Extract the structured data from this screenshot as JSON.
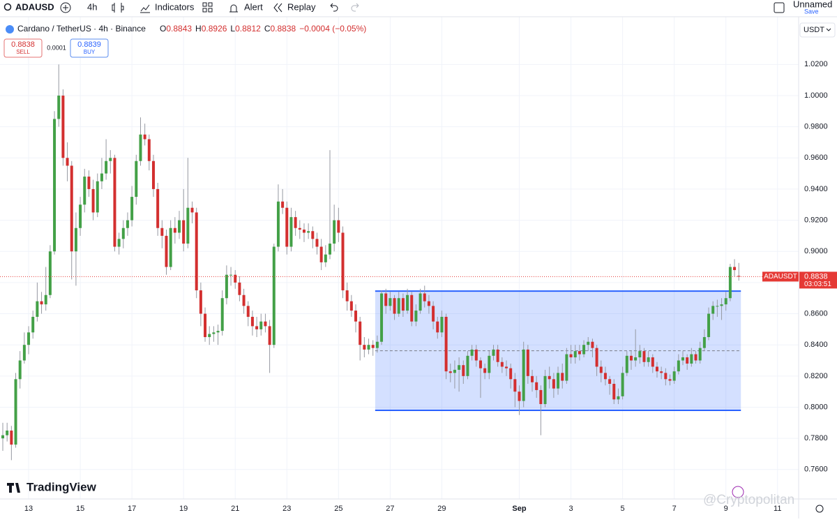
{
  "toolbar": {
    "symbol": "ADAUSD",
    "interval": "4h",
    "indicators": "Indicators",
    "alert": "Alert",
    "replay": "Replay",
    "layout_name": "Unnamed",
    "save": "Save"
  },
  "header": {
    "title": "Cardano / TetherUS · 4h · Binance",
    "legend": [
      {
        "label": "O",
        "value": "0.8843"
      },
      {
        "label": "H",
        "value": "0.8926"
      },
      {
        "label": "L",
        "value": "0.8812"
      },
      {
        "label": "C",
        "value": "0.8838"
      }
    ],
    "change": "−0.0004 (−0.05%)",
    "sell_price": "0.8838",
    "sell": "SELL",
    "spread": "0.0001",
    "buy_price": "0.8839",
    "buy": "BUY"
  },
  "currency": "USDT",
  "logo": "TradingView",
  "watermark": "@Cryptopolitan",
  "chart_data": {
    "type": "candlestick",
    "up_color": "#43a047",
    "down_color": "#d32f2f",
    "wick_color": "#9598a1",
    "grid": true,
    "ylim": [
      0.7411,
      1.0506
    ],
    "yticks": [
      {
        "value": 0.76,
        "label": "0.7600"
      },
      {
        "value": 0.78,
        "label": "0.7800"
      },
      {
        "value": 0.8,
        "label": "0.8000"
      },
      {
        "value": 0.82,
        "label": "0.8200"
      },
      {
        "value": 0.84,
        "label": "0.8400"
      },
      {
        "value": 0.86,
        "label": "0.8600"
      },
      {
        "value": 0.88,
        "label": "0.8800"
      },
      {
        "value": 0.9,
        "label": "0.9000"
      },
      {
        "value": 0.92,
        "label": "0.9200"
      },
      {
        "value": 0.94,
        "label": "0.9400"
      },
      {
        "value": 0.96,
        "label": "0.9600"
      },
      {
        "value": 0.98,
        "label": "0.9800"
      },
      {
        "value": 1.0,
        "label": "1.0000"
      },
      {
        "value": 1.02,
        "label": "1.0200"
      }
    ],
    "xlim": [
      -0.65,
      184.9
    ],
    "xticks": [
      {
        "value": 6,
        "label": "13"
      },
      {
        "value": 18,
        "label": "15"
      },
      {
        "value": 30,
        "label": "17"
      },
      {
        "value": 42,
        "label": "19"
      },
      {
        "value": 54,
        "label": "21"
      },
      {
        "value": 66,
        "label": "23"
      },
      {
        "value": 78,
        "label": "25"
      },
      {
        "value": 90,
        "label": "27"
      },
      {
        "value": 102,
        "label": "29"
      },
      {
        "value": 120,
        "label": "Sep"
      },
      {
        "value": 132,
        "label": "3"
      },
      {
        "value": 144,
        "label": "5"
      },
      {
        "value": 156,
        "label": "7"
      },
      {
        "value": 168,
        "label": "9"
      },
      {
        "value": 180,
        "label": "11"
      }
    ],
    "box": {
      "from": 87,
      "to": 171,
      "high": 0.8745,
      "low": 0.798,
      "color": "#2962ff"
    },
    "last_price": {
      "symbol": "ADAUSDT",
      "value": 0.8838,
      "countdown": "03:03:51",
      "color": "#e53935"
    },
    "ohlc": [
      [
        0.78,
        0.79,
        0.772,
        0.782
      ],
      [
        0.782,
        0.79,
        0.778,
        0.785
      ],
      [
        0.785,
        0.788,
        0.766,
        0.776
      ],
      [
        0.776,
        0.822,
        0.774,
        0.818
      ],
      [
        0.818,
        0.836,
        0.812,
        0.83
      ],
      [
        0.83,
        0.848,
        0.828,
        0.84
      ],
      [
        0.84,
        0.852,
        0.834,
        0.848
      ],
      [
        0.848,
        0.862,
        0.844,
        0.858
      ],
      [
        0.858,
        0.88,
        0.855,
        0.868
      ],
      [
        0.868,
        0.874,
        0.86,
        0.866
      ],
      [
        0.866,
        0.89,
        0.862,
        0.872
      ],
      [
        0.872,
        0.904,
        0.87,
        0.9
      ],
      [
        0.9,
        0.99,
        0.898,
        0.985
      ],
      [
        0.985,
        1.02,
        0.98,
        1.0
      ],
      [
        1.0,
        1.004,
        0.955,
        0.96
      ],
      [
        0.96,
        0.97,
        0.945,
        0.955
      ],
      [
        0.955,
        0.958,
        0.882,
        0.9
      ],
      [
        0.9,
        0.925,
        0.878,
        0.915
      ],
      [
        0.915,
        0.935,
        0.91,
        0.93
      ],
      [
        0.93,
        0.953,
        0.925,
        0.948
      ],
      [
        0.948,
        0.952,
        0.935,
        0.94
      ],
      [
        0.94,
        0.946,
        0.92,
        0.925
      ],
      [
        0.925,
        0.95,
        0.922,
        0.945
      ],
      [
        0.945,
        0.96,
        0.94,
        0.95
      ],
      [
        0.95,
        0.972,
        0.946,
        0.958
      ],
      [
        0.958,
        0.965,
        0.95,
        0.96
      ],
      [
        0.96,
        0.962,
        0.9,
        0.903
      ],
      [
        0.903,
        0.912,
        0.898,
        0.908
      ],
      [
        0.908,
        0.92,
        0.902,
        0.915
      ],
      [
        0.915,
        0.925,
        0.91,
        0.92
      ],
      [
        0.92,
        0.942,
        0.916,
        0.935
      ],
      [
        0.935,
        0.962,
        0.93,
        0.958
      ],
      [
        0.958,
        0.986,
        0.955,
        0.975
      ],
      [
        0.975,
        0.982,
        0.968,
        0.972
      ],
      [
        0.972,
        0.975,
        0.952,
        0.958
      ],
      [
        0.958,
        0.962,
        0.935,
        0.94
      ],
      [
        0.94,
        0.944,
        0.91,
        0.915
      ],
      [
        0.915,
        0.92,
        0.902,
        0.91
      ],
      [
        0.91,
        0.914,
        0.885,
        0.89
      ],
      [
        0.89,
        0.92,
        0.888,
        0.915
      ],
      [
        0.915,
        0.922,
        0.905,
        0.912
      ],
      [
        0.912,
        0.926,
        0.908,
        0.92
      ],
      [
        0.92,
        0.94,
        0.9,
        0.905
      ],
      [
        0.905,
        0.96,
        0.902,
        0.928
      ],
      [
        0.928,
        0.932,
        0.918,
        0.925
      ],
      [
        0.925,
        0.928,
        0.87,
        0.875
      ],
      [
        0.875,
        0.88,
        0.852,
        0.86
      ],
      [
        0.86,
        0.864,
        0.842,
        0.845
      ],
      [
        0.845,
        0.852,
        0.84,
        0.847
      ],
      [
        0.847,
        0.852,
        0.842,
        0.848
      ],
      [
        0.848,
        0.853,
        0.84,
        0.849
      ],
      [
        0.849,
        0.875,
        0.846,
        0.87
      ],
      [
        0.87,
        0.891,
        0.866,
        0.885
      ],
      [
        0.885,
        0.89,
        0.878,
        0.885
      ],
      [
        0.885,
        0.888,
        0.876,
        0.88
      ],
      [
        0.88,
        0.884,
        0.868,
        0.872
      ],
      [
        0.872,
        0.876,
        0.86,
        0.865
      ],
      [
        0.865,
        0.868,
        0.852,
        0.858
      ],
      [
        0.858,
        0.862,
        0.846,
        0.852
      ],
      [
        0.852,
        0.858,
        0.845,
        0.85
      ],
      [
        0.85,
        0.86,
        0.846,
        0.855
      ],
      [
        0.855,
        0.86,
        0.848,
        0.852
      ],
      [
        0.852,
        0.856,
        0.822,
        0.84
      ],
      [
        0.84,
        0.905,
        0.838,
        0.903
      ],
      [
        0.903,
        0.943,
        0.9,
        0.932
      ],
      [
        0.932,
        0.94,
        0.924,
        0.928
      ],
      [
        0.928,
        0.932,
        0.898,
        0.903
      ],
      [
        0.903,
        0.928,
        0.9,
        0.922
      ],
      [
        0.922,
        0.926,
        0.91,
        0.915
      ],
      [
        0.915,
        0.92,
        0.908,
        0.914
      ],
      [
        0.914,
        0.918,
        0.906,
        0.912
      ],
      [
        0.912,
        0.918,
        0.908,
        0.913
      ],
      [
        0.913,
        0.916,
        0.902,
        0.908
      ],
      [
        0.908,
        0.912,
        0.898,
        0.903
      ],
      [
        0.903,
        0.908,
        0.888,
        0.893
      ],
      [
        0.893,
        0.904,
        0.89,
        0.898
      ],
      [
        0.898,
        0.965,
        0.895,
        0.905
      ],
      [
        0.905,
        0.93,
        0.9,
        0.92
      ],
      [
        0.92,
        0.928,
        0.906,
        0.912
      ],
      [
        0.912,
        0.916,
        0.87,
        0.875
      ],
      [
        0.875,
        0.88,
        0.862,
        0.868
      ],
      [
        0.868,
        0.872,
        0.858,
        0.862
      ],
      [
        0.862,
        0.866,
        0.848,
        0.855
      ],
      [
        0.855,
        0.858,
        0.83,
        0.84
      ],
      [
        0.84,
        0.845,
        0.832,
        0.837
      ],
      [
        0.837,
        0.844,
        0.834,
        0.84
      ],
      [
        0.84,
        0.843,
        0.833,
        0.838
      ],
      [
        0.838,
        0.846,
        0.835,
        0.842
      ],
      [
        0.842,
        0.875,
        0.84,
        0.873
      ],
      [
        0.873,
        0.876,
        0.86,
        0.865
      ],
      [
        0.865,
        0.874,
        0.862,
        0.87
      ],
      [
        0.87,
        0.872,
        0.856,
        0.86
      ],
      [
        0.86,
        0.874,
        0.858,
        0.87
      ],
      [
        0.87,
        0.873,
        0.858,
        0.862
      ],
      [
        0.862,
        0.876,
        0.86,
        0.872
      ],
      [
        0.872,
        0.874,
        0.852,
        0.855
      ],
      [
        0.855,
        0.866,
        0.852,
        0.862
      ],
      [
        0.862,
        0.876,
        0.86,
        0.873
      ],
      [
        0.873,
        0.878,
        0.864,
        0.868
      ],
      [
        0.868,
        0.872,
        0.86,
        0.865
      ],
      [
        0.865,
        0.868,
        0.85,
        0.855
      ],
      [
        0.855,
        0.858,
        0.844,
        0.848
      ],
      [
        0.848,
        0.862,
        0.845,
        0.858
      ],
      [
        0.858,
        0.86,
        0.818,
        0.823
      ],
      [
        0.823,
        0.828,
        0.816,
        0.822
      ],
      [
        0.822,
        0.83,
        0.812,
        0.824
      ],
      [
        0.824,
        0.832,
        0.81,
        0.827
      ],
      [
        0.827,
        0.83,
        0.815,
        0.82
      ],
      [
        0.82,
        0.836,
        0.818,
        0.833
      ],
      [
        0.833,
        0.84,
        0.83,
        0.837
      ],
      [
        0.837,
        0.84,
        0.826,
        0.83
      ],
      [
        0.83,
        0.832,
        0.806,
        0.825
      ],
      [
        0.825,
        0.828,
        0.818,
        0.822
      ],
      [
        0.822,
        0.836,
        0.818,
        0.833
      ],
      [
        0.833,
        0.84,
        0.83,
        0.837
      ],
      [
        0.837,
        0.84,
        0.826,
        0.829
      ],
      [
        0.829,
        0.832,
        0.822,
        0.826
      ],
      [
        0.826,
        0.83,
        0.82,
        0.825
      ],
      [
        0.825,
        0.828,
        0.812,
        0.818
      ],
      [
        0.818,
        0.822,
        0.8,
        0.81
      ],
      [
        0.81,
        0.814,
        0.795,
        0.804
      ],
      [
        0.804,
        0.842,
        0.8,
        0.837
      ],
      [
        0.837,
        0.84,
        0.815,
        0.82
      ],
      [
        0.82,
        0.824,
        0.81,
        0.816
      ],
      [
        0.816,
        0.82,
        0.806,
        0.811
      ],
      [
        0.811,
        0.814,
        0.782,
        0.802
      ],
      [
        0.802,
        0.824,
        0.8,
        0.82
      ],
      [
        0.82,
        0.826,
        0.812,
        0.818
      ],
      [
        0.818,
        0.822,
        0.806,
        0.812
      ],
      [
        0.812,
        0.826,
        0.808,
        0.822
      ],
      [
        0.822,
        0.828,
        0.812,
        0.817
      ],
      [
        0.817,
        0.838,
        0.815,
        0.834
      ],
      [
        0.834,
        0.84,
        0.828,
        0.832
      ],
      [
        0.832,
        0.84,
        0.828,
        0.836
      ],
      [
        0.836,
        0.84,
        0.83,
        0.834
      ],
      [
        0.834,
        0.843,
        0.832,
        0.84
      ],
      [
        0.84,
        0.845,
        0.836,
        0.842
      ],
      [
        0.842,
        0.844,
        0.832,
        0.838
      ],
      [
        0.838,
        0.84,
        0.82,
        0.826
      ],
      [
        0.826,
        0.83,
        0.816,
        0.822
      ],
      [
        0.822,
        0.826,
        0.814,
        0.818
      ],
      [
        0.818,
        0.82,
        0.808,
        0.815
      ],
      [
        0.815,
        0.818,
        0.802,
        0.805
      ],
      [
        0.805,
        0.812,
        0.802,
        0.807
      ],
      [
        0.807,
        0.826,
        0.805,
        0.822
      ],
      [
        0.822,
        0.836,
        0.82,
        0.833
      ],
      [
        0.833,
        0.836,
        0.824,
        0.83
      ],
      [
        0.83,
        0.85,
        0.826,
        0.832
      ],
      [
        0.832,
        0.84,
        0.828,
        0.836
      ],
      [
        0.836,
        0.838,
        0.826,
        0.829
      ],
      [
        0.829,
        0.836,
        0.826,
        0.832
      ],
      [
        0.832,
        0.834,
        0.822,
        0.826
      ],
      [
        0.826,
        0.829,
        0.819,
        0.823
      ],
      [
        0.823,
        0.826,
        0.818,
        0.822
      ],
      [
        0.822,
        0.825,
        0.814,
        0.818
      ],
      [
        0.818,
        0.821,
        0.814,
        0.817
      ],
      [
        0.817,
        0.826,
        0.815,
        0.823
      ],
      [
        0.823,
        0.834,
        0.821,
        0.83
      ],
      [
        0.83,
        0.836,
        0.827,
        0.832
      ],
      [
        0.832,
        0.834,
        0.824,
        0.828
      ],
      [
        0.828,
        0.838,
        0.826,
        0.834
      ],
      [
        0.834,
        0.836,
        0.828,
        0.83
      ],
      [
        0.83,
        0.842,
        0.828,
        0.838
      ],
      [
        0.838,
        0.85,
        0.836,
        0.845
      ],
      [
        0.845,
        0.864,
        0.843,
        0.86
      ],
      [
        0.86,
        0.868,
        0.856,
        0.865
      ],
      [
        0.865,
        0.869,
        0.858,
        0.865
      ],
      [
        0.865,
        0.87,
        0.856,
        0.866
      ],
      [
        0.866,
        0.874,
        0.862,
        0.87
      ],
      [
        0.87,
        0.892,
        0.868,
        0.89
      ],
      [
        0.89,
        0.895,
        0.884,
        0.888
      ],
      [
        0.8843,
        0.8926,
        0.8812,
        0.8838
      ]
    ]
  }
}
